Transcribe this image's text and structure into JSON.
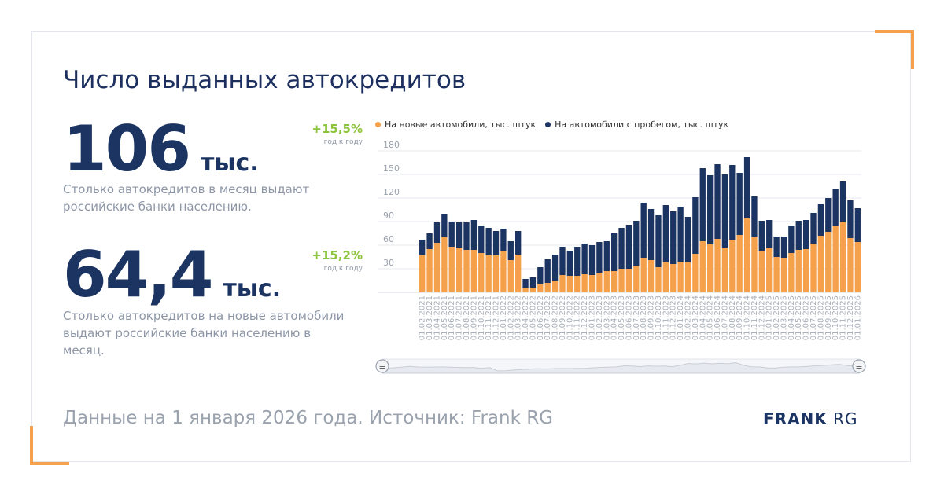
{
  "title": "Число выданных автокредитов",
  "stats": [
    {
      "value": "106",
      "unit": "тыс.",
      "desc": "Столько автокредитов в месяц выдают российские банки населению.",
      "growth": "+15,5%",
      "growth_label": "год к году"
    },
    {
      "value": "64,4",
      "unit": "тыс.",
      "desc": "Столько автокредитов на новые автомобили выдают российские банки населению в месяц.",
      "growth": "+15,2%",
      "growth_label": "год к году"
    }
  ],
  "footer": "Данные на 1 января 2026 года. Источник: Frank RG",
  "brand": {
    "bold": "FRANK",
    "light": "RG"
  },
  "colors": {
    "new": "#f5a04b",
    "used": "#1c3462",
    "accent": "#f5a04b",
    "growth": "#8cc43c"
  },
  "chart_data": {
    "type": "bar",
    "stacked": true,
    "ylim": [
      0,
      180
    ],
    "yticks": [
      30,
      60,
      90,
      120,
      150,
      180
    ],
    "grid": true,
    "legend_position": "top",
    "categories": [
      "01.02.2021",
      "01.03.2021",
      "01.04.2021",
      "01.05.2021",
      "01.06.2021",
      "01.07.2021",
      "01.08.2021",
      "01.09.2021",
      "01.10.2021",
      "01.11.2021",
      "01.12.2021",
      "01.01.2022",
      "01.02.2022",
      "01.03.2022",
      "01.04.2022",
      "01.05.2022",
      "01.06.2022",
      "01.07.2022",
      "01.08.2022",
      "01.09.2022",
      "01.10.2022",
      "01.11.2022",
      "01.12.2022",
      "01.01.2023",
      "01.02.2023",
      "01.03.2023",
      "01.04.2023",
      "01.05.2023",
      "01.06.2023",
      "01.07.2023",
      "01.08.2023",
      "01.09.2023",
      "01.10.2023",
      "01.11.2023",
      "01.12.2023",
      "01.01.2024",
      "01.02.2024",
      "01.03.2024",
      "01.04.2024",
      "01.05.2024",
      "01.06.2024",
      "01.07.2024",
      "01.08.2024",
      "01.09.2024",
      "01.10.2024",
      "01.11.2024",
      "01.12.2024",
      "01.01.2025",
      "01.02.2025",
      "01.03.2025",
      "01.04.2025",
      "01.05.2025",
      "01.06.2025",
      "01.07.2025",
      "01.08.2025",
      "01.09.2025",
      "01.10.2025",
      "01.11.2025",
      "01.12.2025",
      "01.01.2026"
    ],
    "series": [
      {
        "name": "На новые автомобили, тыс. штук",
        "values": [
          48,
          55,
          63,
          70,
          58,
          57,
          54,
          54,
          50,
          47,
          47,
          52,
          41,
          48,
          6,
          6,
          10,
          12,
          15,
          22,
          21,
          21,
          23,
          22,
          25,
          27,
          27,
          30,
          30,
          33,
          44,
          41,
          32,
          38,
          36,
          39,
          38,
          49,
          65,
          61,
          68,
          57,
          67,
          73,
          94,
          71,
          53,
          56,
          45,
          44,
          50,
          54,
          55,
          62,
          72,
          77,
          84,
          89,
          69,
          64
        ]
      },
      {
        "name": "На автомобили с пробегом, тыс. штук",
        "values": [
          19,
          20,
          26,
          30,
          32,
          32,
          35,
          38,
          35,
          35,
          31,
          29,
          24,
          30,
          11,
          13,
          22,
          30,
          33,
          36,
          32,
          37,
          39,
          38,
          39,
          38,
          48,
          52,
          56,
          58,
          70,
          65,
          66,
          73,
          67,
          70,
          58,
          72,
          93,
          88,
          95,
          93,
          95,
          79,
          78,
          51,
          38,
          36,
          26,
          27,
          35,
          37,
          37,
          39,
          40,
          43,
          48,
          52,
          48,
          43
        ]
      }
    ],
    "navigator": {
      "handle_left": "≡",
      "handle_right": "≡"
    }
  }
}
